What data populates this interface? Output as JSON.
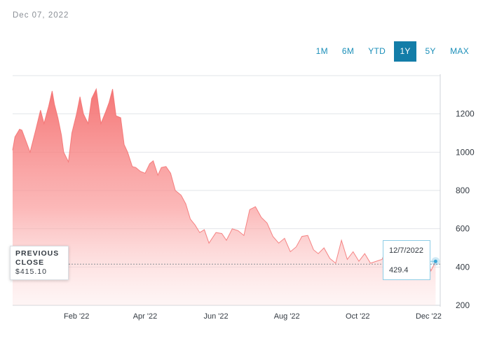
{
  "header": {
    "date": "Dec 07, 2022"
  },
  "range_tabs": {
    "items": [
      "1M",
      "6M",
      "YTD",
      "1Y",
      "5Y",
      "MAX"
    ],
    "selected": "1Y"
  },
  "previous_close": {
    "label": "PREVIOUS CLOSE",
    "value": "$415.10"
  },
  "tooltip": {
    "date": "12/7/2022",
    "value": "429.4"
  },
  "colors": {
    "accent": "#137da8",
    "area": "#f78a8a",
    "marker": "#3aa6d6"
  },
  "chart_data": {
    "type": "area",
    "xlabel": "",
    "ylabel": "",
    "ylim": [
      200,
      1400
    ],
    "yticks": [
      200,
      400,
      600,
      800,
      1000,
      1200
    ],
    "x_tick_labels": [
      "Feb '22",
      "Apr '22",
      "Jun '22",
      "Aug '22",
      "Oct '22",
      "Dec '22"
    ],
    "x_ticks": [
      "2022-02-01",
      "2022-04-01",
      "2022-06-01",
      "2022-08-01",
      "2022-10-01",
      "2022-12-01"
    ],
    "xlim": [
      "2021-12-08",
      "2022-12-11"
    ],
    "grid": true,
    "previous_close": 415.1,
    "series": [
      {
        "x": [
          "2021-12-08",
          "2021-12-10",
          "2021-12-14",
          "2021-12-16",
          "2021-12-20",
          "2021-12-23",
          "2021-12-28",
          "2022-01-01",
          "2022-01-04",
          "2022-01-08",
          "2022-01-11",
          "2022-01-13",
          "2022-01-16",
          "2022-01-19",
          "2022-01-21",
          "2022-01-25",
          "2022-01-28",
          "2022-02-01",
          "2022-02-04",
          "2022-02-07",
          "2022-02-11",
          "2022-02-14",
          "2022-02-18",
          "2022-02-22",
          "2022-02-26",
          "2022-03-01",
          "2022-03-04",
          "2022-03-07",
          "2022-03-11",
          "2022-03-14",
          "2022-03-17",
          "2022-03-21",
          "2022-03-24",
          "2022-03-28",
          "2022-04-01",
          "2022-04-05",
          "2022-04-08",
          "2022-04-12",
          "2022-04-15",
          "2022-04-19",
          "2022-04-23",
          "2022-04-27",
          "2022-05-02",
          "2022-05-06",
          "2022-05-10",
          "2022-05-14",
          "2022-05-18",
          "2022-05-22",
          "2022-05-26",
          "2022-06-01",
          "2022-06-06",
          "2022-06-10",
          "2022-06-15",
          "2022-06-20",
          "2022-06-25",
          "2022-06-30",
          "2022-07-05",
          "2022-07-10",
          "2022-07-15",
          "2022-07-20",
          "2022-07-25",
          "2022-07-30",
          "2022-08-04",
          "2022-08-09",
          "2022-08-14",
          "2022-08-19",
          "2022-08-24",
          "2022-08-28",
          "2022-09-02",
          "2022-09-07",
          "2022-09-12",
          "2022-09-17",
          "2022-09-22",
          "2022-09-27",
          "2022-10-02",
          "2022-10-07",
          "2022-10-12",
          "2022-10-17",
          "2022-10-22",
          "2022-10-27",
          "2022-11-01",
          "2022-11-06",
          "2022-11-10",
          "2022-11-14",
          "2022-11-18",
          "2022-11-22",
          "2022-11-26",
          "2022-11-30",
          "2022-12-03",
          "2022-12-07"
        ],
        "values": [
          1010,
          1080,
          1120,
          1115,
          1050,
          1000,
          1120,
          1220,
          1150,
          1240,
          1320,
          1250,
          1180,
          1090,
          1000,
          950,
          1100,
          1200,
          1290,
          1200,
          1150,
          1280,
          1330,
          1150,
          1210,
          1260,
          1330,
          1190,
          1180,
          1040,
          1000,
          925,
          920,
          900,
          890,
          940,
          955,
          880,
          920,
          925,
          890,
          800,
          775,
          730,
          650,
          620,
          580,
          595,
          525,
          580,
          575,
          540,
          600,
          590,
          565,
          700,
          715,
          660,
          630,
          560,
          525,
          550,
          480,
          505,
          560,
          565,
          490,
          470,
          500,
          445,
          420,
          540,
          440,
          480,
          430,
          470,
          420,
          430,
          440,
          520,
          450,
          470,
          440,
          490,
          460,
          480,
          470,
          450,
          380,
          429.4
        ]
      }
    ]
  }
}
